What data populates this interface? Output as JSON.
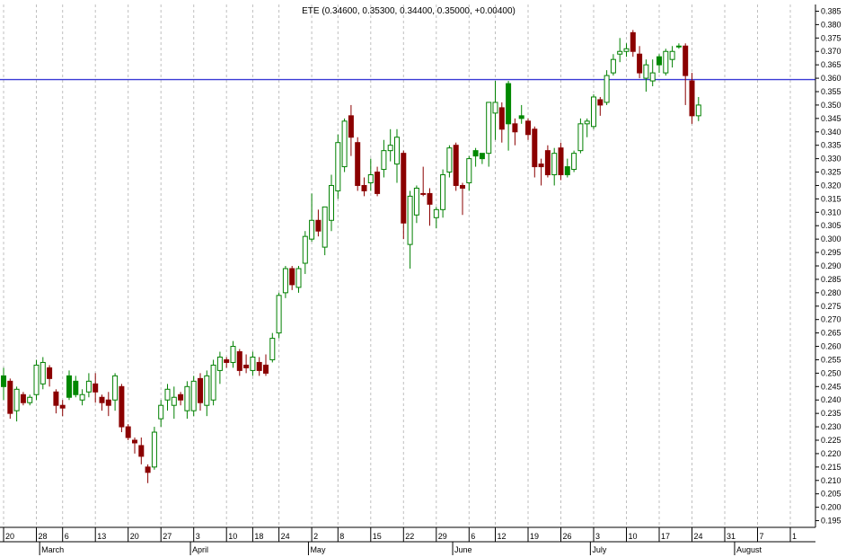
{
  "chart_data": {
    "type": "candlestick",
    "title": "ETE (0.34600, 0.35300, 0.34400, 0.35000, +0.00400)",
    "ylim": [
      0.1925,
      0.3875
    ],
    "y_ticks": [
      "0.195",
      "0.200",
      "0.205",
      "0.210",
      "0.215",
      "0.220",
      "0.225",
      "0.230",
      "0.235",
      "0.240",
      "0.245",
      "0.250",
      "0.255",
      "0.260",
      "0.265",
      "0.270",
      "0.275",
      "0.280",
      "0.285",
      "0.290",
      "0.295",
      "0.300",
      "0.305",
      "0.310",
      "0.315",
      "0.320",
      "0.325",
      "0.330",
      "0.335",
      "0.340",
      "0.345",
      "0.350",
      "0.355",
      "0.360",
      "0.365",
      "0.370",
      "0.375",
      "0.380",
      "0.385"
    ],
    "x_day_ticks": [
      {
        "label": "20",
        "i": 0
      },
      {
        "label": "28",
        "i": 5
      },
      {
        "label": "6",
        "i": 9
      },
      {
        "label": "13",
        "i": 14
      },
      {
        "label": "20",
        "i": 19
      },
      {
        "label": "27",
        "i": 24
      },
      {
        "label": "3",
        "i": 29
      },
      {
        "label": "10",
        "i": 34
      },
      {
        "label": "18",
        "i": 38
      },
      {
        "label": "24",
        "i": 42
      },
      {
        "label": "2",
        "i": 47
      },
      {
        "label": "8",
        "i": 51
      },
      {
        "label": "15",
        "i": 56
      },
      {
        "label": "22",
        "i": 61
      },
      {
        "label": "29",
        "i": 66
      },
      {
        "label": "6",
        "i": 71
      },
      {
        "label": "12",
        "i": 75
      },
      {
        "label": "19",
        "i": 80
      },
      {
        "label": "26",
        "i": 85
      },
      {
        "label": "3",
        "i": 90
      },
      {
        "label": "10",
        "i": 95
      },
      {
        "label": "17",
        "i": 100
      },
      {
        "label": "24",
        "i": 105
      },
      {
        "label": "31",
        "i": 110
      },
      {
        "label": "7",
        "i": 115
      },
      {
        "label": "1",
        "i": 120
      }
    ],
    "x_month_ticks": [
      {
        "label": "March",
        "i": 5.5
      },
      {
        "label": "April",
        "i": 28.5
      },
      {
        "label": "May",
        "i": 46.5
      },
      {
        "label": "June",
        "i": 68.5
      },
      {
        "label": "July",
        "i": 89.5
      },
      {
        "label": "August",
        "i": 111.5
      }
    ],
    "horizontal_line": {
      "value": 0.3595,
      "color": "#3b3bd6"
    },
    "colors": {
      "up": "#ffffff",
      "up_stroke": "#008000",
      "down": "#8b0000",
      "strong_up": "#008800",
      "grid": "#bfbfbf"
    },
    "candles": [
      {
        "o": 0.245,
        "h": 0.252,
        "l": 0.24,
        "c": 0.249,
        "s": "gu"
      },
      {
        "o": 0.247,
        "h": 0.248,
        "l": 0.233,
        "c": 0.235,
        "s": "d"
      },
      {
        "o": 0.236,
        "h": 0.245,
        "l": 0.232,
        "c": 0.244,
        "s": "u"
      },
      {
        "o": 0.242,
        "h": 0.243,
        "l": 0.238,
        "c": 0.239,
        "s": "d"
      },
      {
        "o": 0.239,
        "h": 0.242,
        "l": 0.238,
        "c": 0.241,
        "s": "u"
      },
      {
        "o": 0.242,
        "h": 0.255,
        "l": 0.24,
        "c": 0.253,
        "s": "u"
      },
      {
        "o": 0.254,
        "h": 0.256,
        "l": 0.244,
        "c": 0.246,
        "s": "u"
      },
      {
        "o": 0.252,
        "h": 0.253,
        "l": 0.245,
        "c": 0.248,
        "s": "d"
      },
      {
        "o": 0.243,
        "h": 0.244,
        "l": 0.235,
        "c": 0.238,
        "s": "d"
      },
      {
        "o": 0.238,
        "h": 0.24,
        "l": 0.234,
        "c": 0.237,
        "s": "d"
      },
      {
        "o": 0.241,
        "h": 0.251,
        "l": 0.24,
        "c": 0.249,
        "s": "gu"
      },
      {
        "o": 0.247,
        "h": 0.249,
        "l": 0.241,
        "c": 0.242,
        "s": "gu"
      },
      {
        "o": 0.24,
        "h": 0.244,
        "l": 0.238,
        "c": 0.242,
        "s": "u"
      },
      {
        "o": 0.243,
        "h": 0.25,
        "l": 0.241,
        "c": 0.247,
        "s": "u"
      },
      {
        "o": 0.246,
        "h": 0.25,
        "l": 0.239,
        "c": 0.243,
        "s": "d"
      },
      {
        "o": 0.241,
        "h": 0.242,
        "l": 0.236,
        "c": 0.239,
        "s": "d"
      },
      {
        "o": 0.24,
        "h": 0.243,
        "l": 0.234,
        "c": 0.238,
        "s": "d"
      },
      {
        "o": 0.24,
        "h": 0.25,
        "l": 0.236,
        "c": 0.249,
        "s": "u"
      },
      {
        "o": 0.245,
        "h": 0.246,
        "l": 0.228,
        "c": 0.23,
        "s": "d"
      },
      {
        "o": 0.23,
        "h": 0.231,
        "l": 0.225,
        "c": 0.226,
        "s": "d"
      },
      {
        "o": 0.225,
        "h": 0.226,
        "l": 0.22,
        "c": 0.224,
        "s": "d"
      },
      {
        "o": 0.223,
        "h": 0.226,
        "l": 0.216,
        "c": 0.219,
        "s": "d"
      },
      {
        "o": 0.215,
        "h": 0.216,
        "l": 0.209,
        "c": 0.213,
        "s": "d"
      },
      {
        "o": 0.215,
        "h": 0.23,
        "l": 0.214,
        "c": 0.228,
        "s": "u"
      },
      {
        "o": 0.233,
        "h": 0.24,
        "l": 0.23,
        "c": 0.238,
        "s": "u"
      },
      {
        "o": 0.24,
        "h": 0.246,
        "l": 0.236,
        "c": 0.244,
        "s": "u"
      },
      {
        "o": 0.238,
        "h": 0.245,
        "l": 0.233,
        "c": 0.241,
        "s": "u"
      },
      {
        "o": 0.242,
        "h": 0.243,
        "l": 0.238,
        "c": 0.24,
        "s": "d"
      },
      {
        "o": 0.236,
        "h": 0.247,
        "l": 0.233,
        "c": 0.245,
        "s": "u"
      },
      {
        "o": 0.236,
        "h": 0.249,
        "l": 0.234,
        "c": 0.247,
        "s": "u"
      },
      {
        "o": 0.248,
        "h": 0.25,
        "l": 0.236,
        "c": 0.239,
        "s": "d"
      },
      {
        "o": 0.238,
        "h": 0.251,
        "l": 0.234,
        "c": 0.249,
        "s": "u"
      },
      {
        "o": 0.24,
        "h": 0.255,
        "l": 0.238,
        "c": 0.253,
        "s": "u"
      },
      {
        "o": 0.251,
        "h": 0.258,
        "l": 0.246,
        "c": 0.256,
        "s": "u"
      },
      {
        "o": 0.255,
        "h": 0.256,
        "l": 0.252,
        "c": 0.254,
        "s": "d"
      },
      {
        "o": 0.254,
        "h": 0.262,
        "l": 0.252,
        "c": 0.26,
        "s": "u"
      },
      {
        "o": 0.258,
        "h": 0.259,
        "l": 0.249,
        "c": 0.251,
        "s": "d"
      },
      {
        "o": 0.253,
        "h": 0.257,
        "l": 0.25,
        "c": 0.252,
        "s": "d"
      },
      {
        "o": 0.251,
        "h": 0.258,
        "l": 0.249,
        "c": 0.256,
        "s": "u"
      },
      {
        "o": 0.254,
        "h": 0.256,
        "l": 0.249,
        "c": 0.251,
        "s": "d"
      },
      {
        "o": 0.253,
        "h": 0.257,
        "l": 0.249,
        "c": 0.25,
        "s": "d"
      },
      {
        "o": 0.255,
        "h": 0.265,
        "l": 0.254,
        "c": 0.263,
        "s": "u"
      },
      {
        "o": 0.265,
        "h": 0.28,
        "l": 0.263,
        "c": 0.279,
        "s": "u"
      },
      {
        "o": 0.28,
        "h": 0.29,
        "l": 0.278,
        "c": 0.289,
        "s": "u"
      },
      {
        "o": 0.289,
        "h": 0.29,
        "l": 0.281,
        "c": 0.283,
        "s": "d"
      },
      {
        "o": 0.282,
        "h": 0.29,
        "l": 0.28,
        "c": 0.289,
        "s": "u"
      },
      {
        "o": 0.291,
        "h": 0.303,
        "l": 0.287,
        "c": 0.301,
        "s": "u"
      },
      {
        "o": 0.3,
        "h": 0.317,
        "l": 0.299,
        "c": 0.307,
        "s": "u"
      },
      {
        "o": 0.307,
        "h": 0.311,
        "l": 0.301,
        "c": 0.303,
        "s": "d"
      },
      {
        "o": 0.297,
        "h": 0.312,
        "l": 0.294,
        "c": 0.312,
        "s": "u"
      },
      {
        "o": 0.307,
        "h": 0.324,
        "l": 0.303,
        "c": 0.32,
        "s": "u"
      },
      {
        "o": 0.318,
        "h": 0.339,
        "l": 0.315,
        "c": 0.336,
        "s": "u"
      },
      {
        "o": 0.327,
        "h": 0.345,
        "l": 0.325,
        "c": 0.344,
        "s": "u"
      },
      {
        "o": 0.346,
        "h": 0.35,
        "l": 0.331,
        "c": 0.338,
        "s": "d"
      },
      {
        "o": 0.336,
        "h": 0.338,
        "l": 0.318,
        "c": 0.32,
        "s": "d"
      },
      {
        "o": 0.32,
        "h": 0.323,
        "l": 0.316,
        "c": 0.318,
        "s": "d"
      },
      {
        "o": 0.321,
        "h": 0.33,
        "l": 0.318,
        "c": 0.324,
        "s": "u"
      },
      {
        "o": 0.325,
        "h": 0.327,
        "l": 0.316,
        "c": 0.317,
        "s": "d"
      },
      {
        "o": 0.326,
        "h": 0.337,
        "l": 0.323,
        "c": 0.333,
        "s": "u"
      },
      {
        "o": 0.333,
        "h": 0.341,
        "l": 0.329,
        "c": 0.335,
        "s": "u"
      },
      {
        "o": 0.338,
        "h": 0.341,
        "l": 0.321,
        "c": 0.328,
        "s": "u"
      },
      {
        "o": 0.332,
        "h": 0.333,
        "l": 0.3,
        "c": 0.306,
        "s": "d"
      },
      {
        "o": 0.298,
        "h": 0.318,
        "l": 0.289,
        "c": 0.316,
        "s": "u"
      },
      {
        "o": 0.309,
        "h": 0.32,
        "l": 0.306,
        "c": 0.319,
        "s": "u"
      },
      {
        "o": 0.317,
        "h": 0.327,
        "l": 0.316,
        "c": 0.317,
        "s": "d"
      },
      {
        "o": 0.317,
        "h": 0.319,
        "l": 0.305,
        "c": 0.313,
        "s": "d"
      },
      {
        "o": 0.308,
        "h": 0.312,
        "l": 0.304,
        "c": 0.311,
        "s": "u"
      },
      {
        "o": 0.311,
        "h": 0.326,
        "l": 0.308,
        "c": 0.324,
        "s": "u"
      },
      {
        "o": 0.325,
        "h": 0.335,
        "l": 0.323,
        "c": 0.334,
        "s": "u"
      },
      {
        "o": 0.335,
        "h": 0.336,
        "l": 0.318,
        "c": 0.32,
        "s": "d"
      },
      {
        "o": 0.32,
        "h": 0.321,
        "l": 0.309,
        "c": 0.319,
        "s": "d"
      },
      {
        "o": 0.321,
        "h": 0.331,
        "l": 0.318,
        "c": 0.33,
        "s": "u"
      },
      {
        "o": 0.331,
        "h": 0.334,
        "l": 0.327,
        "c": 0.333,
        "s": "gu"
      },
      {
        "o": 0.33,
        "h": 0.331,
        "l": 0.328,
        "c": 0.332,
        "s": "gu"
      },
      {
        "o": 0.332,
        "h": 0.351,
        "l": 0.327,
        "c": 0.351,
        "s": "u"
      },
      {
        "o": 0.351,
        "h": 0.359,
        "l": 0.337,
        "c": 0.347,
        "s": "u"
      },
      {
        "o": 0.349,
        "h": 0.351,
        "l": 0.336,
        "c": 0.341,
        "s": "d"
      },
      {
        "o": 0.343,
        "h": 0.359,
        "l": 0.333,
        "c": 0.358,
        "s": "gu"
      },
      {
        "o": 0.343,
        "h": 0.345,
        "l": 0.335,
        "c": 0.34,
        "s": "d"
      },
      {
        "o": 0.345,
        "h": 0.35,
        "l": 0.343,
        "c": 0.346,
        "s": "gu"
      },
      {
        "o": 0.344,
        "h": 0.345,
        "l": 0.337,
        "c": 0.339,
        "s": "d"
      },
      {
        "o": 0.341,
        "h": 0.342,
        "l": 0.323,
        "c": 0.327,
        "s": "d"
      },
      {
        "o": 0.328,
        "h": 0.33,
        "l": 0.32,
        "c": 0.327,
        "s": "d"
      },
      {
        "o": 0.333,
        "h": 0.335,
        "l": 0.323,
        "c": 0.324,
        "s": "d"
      },
      {
        "o": 0.324,
        "h": 0.334,
        "l": 0.32,
        "c": 0.332,
        "s": "u"
      },
      {
        "o": 0.334,
        "h": 0.336,
        "l": 0.322,
        "c": 0.324,
        "s": "d"
      },
      {
        "o": 0.324,
        "h": 0.33,
        "l": 0.323,
        "c": 0.327,
        "s": "gu"
      },
      {
        "o": 0.326,
        "h": 0.333,
        "l": 0.325,
        "c": 0.332,
        "s": "u"
      },
      {
        "o": 0.333,
        "h": 0.345,
        "l": 0.332,
        "c": 0.343,
        "s": "u"
      },
      {
        "o": 0.343,
        "h": 0.345,
        "l": 0.338,
        "c": 0.344,
        "s": "u"
      },
      {
        "o": 0.342,
        "h": 0.354,
        "l": 0.341,
        "c": 0.353,
        "s": "u"
      },
      {
        "o": 0.352,
        "h": 0.353,
        "l": 0.346,
        "c": 0.35,
        "s": "d"
      },
      {
        "o": 0.351,
        "h": 0.363,
        "l": 0.35,
        "c": 0.361,
        "s": "u"
      },
      {
        "o": 0.362,
        "h": 0.369,
        "l": 0.361,
        "c": 0.367,
        "s": "u"
      },
      {
        "o": 0.369,
        "h": 0.375,
        "l": 0.366,
        "c": 0.37,
        "s": "u"
      },
      {
        "o": 0.371,
        "h": 0.373,
        "l": 0.368,
        "c": 0.37,
        "s": "u"
      },
      {
        "o": 0.377,
        "h": 0.378,
        "l": 0.368,
        "c": 0.37,
        "s": "d"
      },
      {
        "o": 0.369,
        "h": 0.372,
        "l": 0.36,
        "c": 0.362,
        "s": "d"
      },
      {
        "o": 0.365,
        "h": 0.367,
        "l": 0.355,
        "c": 0.36,
        "s": "u"
      },
      {
        "o": 0.362,
        "h": 0.367,
        "l": 0.357,
        "c": 0.359,
        "s": "u"
      },
      {
        "o": 0.368,
        "h": 0.369,
        "l": 0.362,
        "c": 0.365,
        "s": "gu"
      },
      {
        "o": 0.362,
        "h": 0.371,
        "l": 0.361,
        "c": 0.37,
        "s": "u"
      },
      {
        "o": 0.367,
        "h": 0.372,
        "l": 0.364,
        "c": 0.37,
        "s": "u"
      },
      {
        "o": 0.372,
        "h": 0.373,
        "l": 0.371,
        "c": 0.372,
        "s": "gu"
      },
      {
        "o": 0.372,
        "h": 0.373,
        "l": 0.35,
        "c": 0.361,
        "s": "d"
      },
      {
        "o": 0.359,
        "h": 0.362,
        "l": 0.343,
        "c": 0.346,
        "s": "d"
      },
      {
        "o": 0.346,
        "h": 0.353,
        "l": 0.344,
        "c": 0.35,
        "s": "u"
      }
    ]
  }
}
